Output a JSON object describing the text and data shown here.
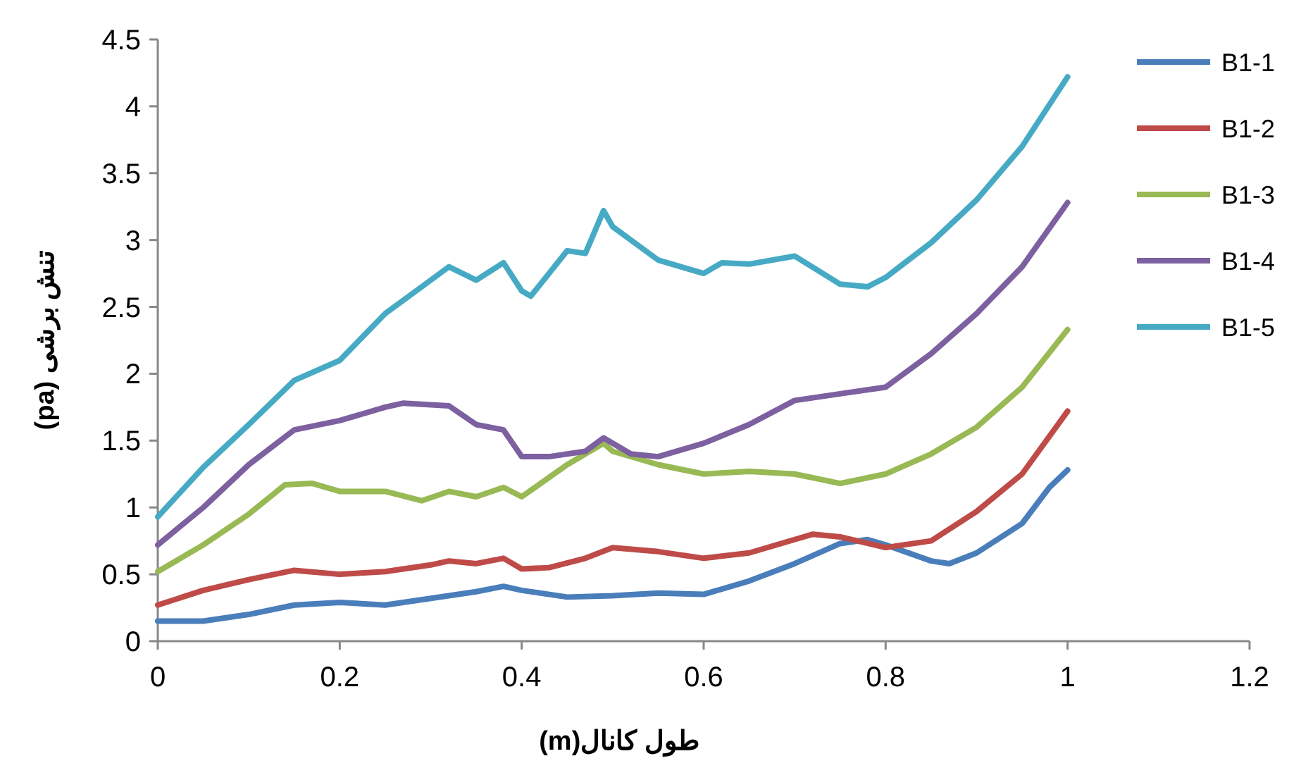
{
  "chart_data": {
    "type": "line",
    "xlabel": "طول کانال(m)",
    "ylabel": "تنش برشی (pa)",
    "xlim": [
      0,
      1.2
    ],
    "xticks": [
      0,
      0.2,
      0.4,
      0.6,
      0.8,
      1,
      1.2
    ],
    "ylim": [
      0,
      4.5
    ],
    "yticks": [
      0,
      0.5,
      1,
      1.5,
      2,
      2.5,
      3,
      3.5,
      4,
      4.5
    ],
    "grid": false,
    "legend": "right",
    "marker": "none",
    "line_style": "solid",
    "series": [
      {
        "name": "B1-1",
        "color": "#4a7ebb",
        "x": [
          0,
          0.05,
          0.1,
          0.15,
          0.2,
          0.25,
          0.3,
          0.35,
          0.38,
          0.4,
          0.45,
          0.5,
          0.55,
          0.6,
          0.65,
          0.7,
          0.75,
          0.78,
          0.8,
          0.85,
          0.87,
          0.9,
          0.95,
          0.98,
          1
        ],
        "values": [
          0.15,
          0.15,
          0.2,
          0.27,
          0.29,
          0.27,
          0.32,
          0.37,
          0.41,
          0.38,
          0.33,
          0.34,
          0.36,
          0.35,
          0.45,
          0.58,
          0.73,
          0.76,
          0.72,
          0.6,
          0.58,
          0.66,
          0.88,
          1.15,
          1.28
        ]
      },
      {
        "name": "B1-2",
        "color": "#be4b48",
        "x": [
          0,
          0.05,
          0.1,
          0.15,
          0.2,
          0.25,
          0.3,
          0.32,
          0.35,
          0.38,
          0.4,
          0.43,
          0.47,
          0.5,
          0.55,
          0.6,
          0.65,
          0.7,
          0.72,
          0.75,
          0.8,
          0.85,
          0.9,
          0.95,
          1
        ],
        "values": [
          0.27,
          0.38,
          0.46,
          0.53,
          0.5,
          0.52,
          0.57,
          0.6,
          0.58,
          0.62,
          0.54,
          0.55,
          0.62,
          0.7,
          0.67,
          0.62,
          0.66,
          0.76,
          0.8,
          0.78,
          0.7,
          0.75,
          0.97,
          1.25,
          1.72
        ]
      },
      {
        "name": "B1-3",
        "color": "#98b954",
        "x": [
          0,
          0.05,
          0.1,
          0.14,
          0.17,
          0.2,
          0.25,
          0.29,
          0.32,
          0.35,
          0.38,
          0.4,
          0.45,
          0.49,
          0.5,
          0.55,
          0.6,
          0.65,
          0.7,
          0.75,
          0.8,
          0.85,
          0.9,
          0.95,
          1
        ],
        "values": [
          0.52,
          0.72,
          0.95,
          1.17,
          1.18,
          1.12,
          1.12,
          1.05,
          1.12,
          1.08,
          1.15,
          1.08,
          1.32,
          1.48,
          1.42,
          1.32,
          1.25,
          1.27,
          1.25,
          1.18,
          1.25,
          1.4,
          1.6,
          1.9,
          2.33
        ]
      },
      {
        "name": "B1-4",
        "color": "#7d60a0",
        "x": [
          0,
          0.05,
          0.1,
          0.15,
          0.2,
          0.25,
          0.27,
          0.32,
          0.35,
          0.38,
          0.4,
          0.43,
          0.47,
          0.49,
          0.52,
          0.55,
          0.6,
          0.65,
          0.7,
          0.75,
          0.8,
          0.85,
          0.9,
          0.95,
          1
        ],
        "values": [
          0.72,
          1.0,
          1.32,
          1.58,
          1.65,
          1.75,
          1.78,
          1.76,
          1.62,
          1.58,
          1.38,
          1.38,
          1.42,
          1.52,
          1.4,
          1.38,
          1.48,
          1.62,
          1.8,
          1.85,
          1.9,
          2.15,
          2.45,
          2.8,
          3.28
        ]
      },
      {
        "name": "B1-5",
        "color": "#46aac5",
        "x": [
          0,
          0.05,
          0.1,
          0.15,
          0.2,
          0.25,
          0.3,
          0.32,
          0.35,
          0.38,
          0.4,
          0.41,
          0.45,
          0.47,
          0.49,
          0.5,
          0.55,
          0.6,
          0.62,
          0.65,
          0.7,
          0.75,
          0.78,
          0.8,
          0.85,
          0.9,
          0.95,
          1
        ],
        "values": [
          0.93,
          1.3,
          1.62,
          1.95,
          2.1,
          2.45,
          2.7,
          2.8,
          2.7,
          2.83,
          2.62,
          2.58,
          2.92,
          2.9,
          3.22,
          3.1,
          2.85,
          2.75,
          2.83,
          2.82,
          2.88,
          2.67,
          2.65,
          2.72,
          2.98,
          3.3,
          3.7,
          4.22
        ]
      }
    ]
  }
}
